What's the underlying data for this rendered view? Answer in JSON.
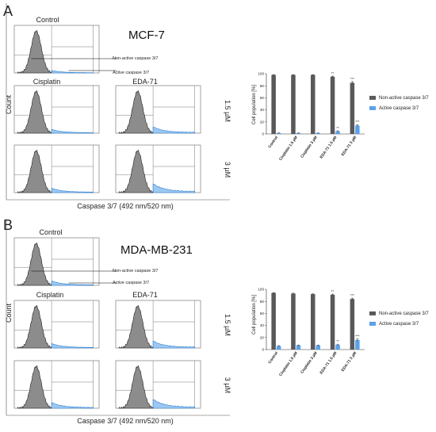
{
  "panels": [
    {
      "letter": "A",
      "cell_line": "MCF-7",
      "control_title": "Control",
      "col_titles": [
        "Cisplatin",
        "EDA-71"
      ],
      "row_labels": [
        "1.5 µM",
        "3 µM"
      ],
      "y_label": "Count",
      "x_label": "Caspase 3/7 (492 nm/520 nm)",
      "annotation_nonactive": "Non-active caspase 3/7",
      "annotation_active": "Active caspase 3/7",
      "histogram_shift": [
        0.0,
        0.2,
        0.6,
        0.3,
        1.0
      ]
    },
    {
      "letter": "B",
      "cell_line": "MDA-MB-231",
      "control_title": "Control",
      "col_titles": [
        "Cisplatin",
        "EDA-71"
      ],
      "row_labels": [
        "1.5 µM",
        "3 µM"
      ],
      "y_label": "Count",
      "x_label": "Caspase 3/7 (492 nm/520 nm)",
      "annotation_nonactive": "Non-active caspase 3/7",
      "annotation_active": "Active caspase 3/7",
      "histogram_shift": [
        0.3,
        0.3,
        0.7,
        0.5,
        1.0
      ]
    }
  ],
  "chart_data": [
    {
      "type": "bar",
      "ylabel": "Cell population [%]",
      "ylim": [
        0,
        100
      ],
      "yticks": [
        0,
        20,
        40,
        60,
        80,
        100
      ],
      "categories": [
        "Control",
        "Cisplatin 1.5 µM",
        "Cisplatin 3 µM",
        "EDA-71 1.5 µM",
        "EDA-71 3 µM"
      ],
      "series": [
        {
          "name": "Non-active caspase 3/7",
          "values": [
            98,
            98,
            98,
            95,
            85
          ],
          "errors": [
            0.5,
            0.5,
            0.5,
            1.0,
            2.0
          ]
        },
        {
          "name": "Active caspase 3/7",
          "values": [
            1.5,
            1.5,
            1.5,
            4.5,
            14
          ],
          "errors": [
            0.3,
            0.3,
            0.3,
            0.8,
            1.5
          ]
        }
      ],
      "significance": [
        [
          "",
          "",
          "",
          "**",
          "***"
        ],
        [
          "",
          "",
          "",
          "**",
          "***"
        ]
      ],
      "colors": [
        "#595959",
        "#5aa0ea"
      ],
      "legend_position": "right"
    },
    {
      "type": "bar",
      "ylabel": "Cell population [%]",
      "ylim": [
        0,
        100
      ],
      "yticks": [
        0,
        20,
        40,
        60,
        80,
        100
      ],
      "categories": [
        "Control",
        "Cisplatin 1.5 µM",
        "Cisplatin 3 µM",
        "EDA-71 1.5 µM",
        "EDA-71 3 µM"
      ],
      "series": [
        {
          "name": "Non-active caspase 3/7",
          "values": [
            94,
            93,
            92,
            91,
            84
          ],
          "errors": [
            0.5,
            0.6,
            0.6,
            1.0,
            1.5
          ]
        },
        {
          "name": "Active caspase 3/7",
          "values": [
            6,
            7,
            7,
            8,
            16
          ],
          "errors": [
            0.5,
            0.6,
            0.6,
            1.0,
            1.5
          ]
        }
      ],
      "significance": [
        [
          "",
          "",
          "",
          "**",
          "***"
        ],
        [
          "",
          "",
          "",
          "**",
          "***"
        ]
      ],
      "colors": [
        "#595959",
        "#5aa0ea"
      ],
      "legend_position": "right"
    }
  ]
}
